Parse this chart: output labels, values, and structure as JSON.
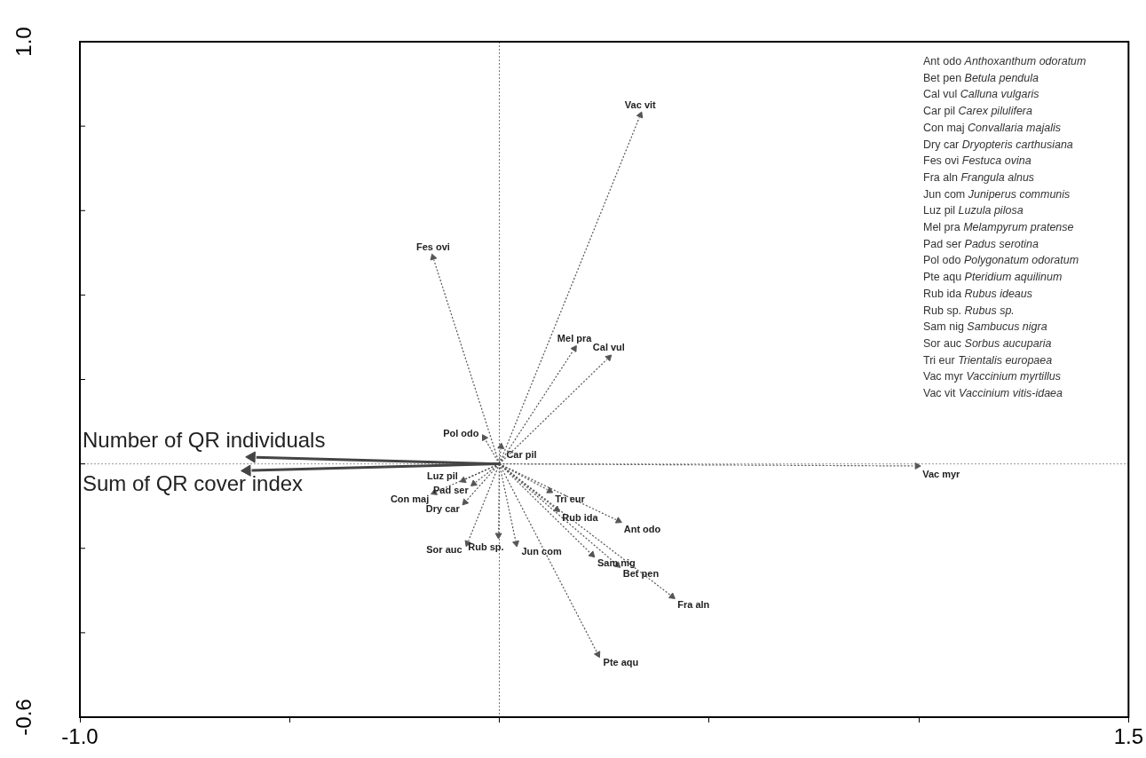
{
  "chart_data": {
    "type": "scatter",
    "xlim": [
      -1.0,
      1.5
    ],
    "ylim": [
      -0.6,
      1.0
    ],
    "marker": "triangle",
    "xticks": [
      {
        "value": -1.0,
        "label": "-1.0"
      },
      {
        "value": -0.5,
        "label": null
      },
      {
        "value": 0,
        "label": null
      },
      {
        "value": 0.5,
        "label": null
      },
      {
        "value": 1.0,
        "label": null
      },
      {
        "value": 1.5,
        "label": "1.5"
      }
    ],
    "yticks": [
      {
        "value": -0.6,
        "label": "-0.6"
      },
      {
        "value": -0.4,
        "label": null
      },
      {
        "value": -0.2,
        "label": null
      },
      {
        "value": 0,
        "label": null
      },
      {
        "value": 0.2,
        "label": null
      },
      {
        "value": 0.4,
        "label": null
      },
      {
        "value": 0.6,
        "label": null
      },
      {
        "value": 0.8,
        "label": null
      },
      {
        "value": 1.0,
        "label": "1.0"
      }
    ],
    "grid": false,
    "legend": false,
    "ref_lines": [
      {
        "axis": "x",
        "value": 0,
        "color": "#777777",
        "line_style": "dotted"
      },
      {
        "axis": "y",
        "value": 0,
        "color": "#999999",
        "line_style": "dotted"
      }
    ],
    "series": [
      {
        "color": "#555555",
        "line_style": "dotted",
        "x": [
          0.336,
          -0.158,
          0.179,
          0.261,
          -0.036,
          0.004,
          0.996,
          -0.086,
          -0.061,
          -0.155,
          -0.082,
          0.12,
          0.137,
          0.284,
          -0.076,
          -0.002,
          0.04,
          0.221,
          0.282,
          0.412,
          0.235
        ],
        "values": [
          0.826,
          0.489,
          0.273,
          0.252,
          0.062,
          0.041,
          -0.005,
          -0.039,
          -0.047,
          -0.068,
          -0.091,
          -0.064,
          -0.108,
          -0.135,
          -0.188,
          -0.169,
          -0.188,
          -0.215,
          -0.24,
          -0.314,
          -0.451
        ]
      },
      {
        "color": "#444444",
        "line_style": "solid",
        "x": [
          -0.59,
          -0.601
        ],
        "values": [
          0.016,
          -0.016
        ]
      }
    ],
    "annotations": [
      {
        "text": "Vac vit",
        "x": 0.336,
        "y": 0.826
      },
      {
        "text": "Fes ovi",
        "x": -0.158,
        "y": 0.489
      },
      {
        "text": "Mel pra",
        "x": 0.179,
        "y": 0.273
      },
      {
        "text": "Cal vul",
        "x": 0.261,
        "y": 0.252
      },
      {
        "text": "Pol odo",
        "x": -0.036,
        "y": 0.062
      },
      {
        "text": "Car pil",
        "x": 0.004,
        "y": 0.041
      },
      {
        "text": "Vac myr",
        "x": 0.996,
        "y": -0.005
      },
      {
        "text": "Luz pil",
        "x": -0.086,
        "y": -0.039
      },
      {
        "text": "Pad ser",
        "x": -0.061,
        "y": -0.047
      },
      {
        "text": "Con maj",
        "x": -0.155,
        "y": -0.068
      },
      {
        "text": "Dry car",
        "x": -0.082,
        "y": -0.091
      },
      {
        "text": "Tri eur",
        "x": 0.12,
        "y": -0.064
      },
      {
        "text": "Rub ida",
        "x": 0.137,
        "y": -0.108
      },
      {
        "text": "Ant odo",
        "x": 0.284,
        "y": -0.135
      },
      {
        "text": "Sor auc",
        "x": -0.076,
        "y": -0.188
      },
      {
        "text": "Rub sp.",
        "x": -0.002,
        "y": -0.169
      },
      {
        "text": "Jun com",
        "x": 0.04,
        "y": -0.188
      },
      {
        "text": "Sam nig",
        "x": 0.221,
        "y": -0.215
      },
      {
        "text": "Bet pen",
        "x": 0.282,
        "y": -0.24
      },
      {
        "text": "Fra aln",
        "x": 0.412,
        "y": -0.314
      },
      {
        "text": "Pte aqu",
        "x": 0.235,
        "y": -0.451
      },
      {
        "text": "Number of QR individuals",
        "x": -0.59,
        "y": 0.016
      },
      {
        "text": "Sum of QR cover index",
        "x": -0.601,
        "y": -0.016
      },
      "Ant odo Anthoxanthum odoratum",
      "Bet pen Betula pendula",
      "Cal vul Calluna vulgaris",
      "Car pil Carex pilulifera",
      "Con maj Convallaria majalis",
      "Dry car Dryopteris carthusiana",
      "Fes ovi Festuca ovina",
      "Fra aln Frangula alnus",
      "Jun com Juniperus communis",
      "Luz pil Luzula pilosa",
      "Mel pra Melampyrum pratense",
      "Pad ser Padus serotina",
      "Pol odo Polygonatum odoratum",
      "Pte aqu Pteridium aquilinum",
      "Rub ida Rubus ideaus",
      "Rub sp. Rubus sp.",
      "Sam nig Sambucus nigra",
      "Sor auc Sorbus aucuparia",
      "Tri eur Trientalis europaea",
      "Vac myr Vaccinium myrtillus",
      "Vac vit Vaccinium vitis-idaea"
    ]
  }
}
